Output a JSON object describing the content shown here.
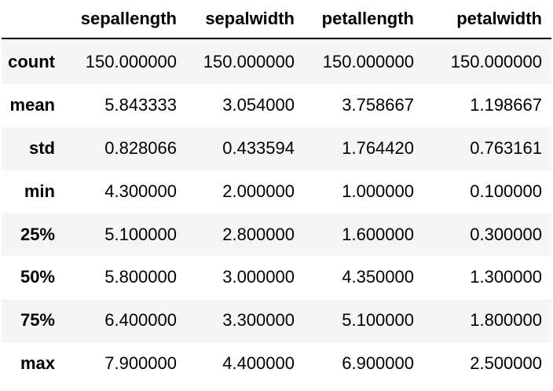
{
  "table": {
    "columns": [
      "",
      "sepallength",
      "sepalwidth",
      "petallength",
      "petalwidth"
    ],
    "rows": [
      {
        "index": "count",
        "values": [
          "150.000000",
          "150.000000",
          "150.000000",
          "150.000000"
        ]
      },
      {
        "index": "mean",
        "values": [
          "5.843333",
          "3.054000",
          "3.758667",
          "1.198667"
        ]
      },
      {
        "index": "std",
        "values": [
          "0.828066",
          "0.433594",
          "1.764420",
          "0.763161"
        ]
      },
      {
        "index": "min",
        "values": [
          "4.300000",
          "2.000000",
          "1.000000",
          "0.100000"
        ]
      },
      {
        "index": "25%",
        "values": [
          "5.100000",
          "2.800000",
          "1.600000",
          "0.300000"
        ]
      },
      {
        "index": "50%",
        "values": [
          "5.800000",
          "3.000000",
          "4.350000",
          "1.300000"
        ]
      },
      {
        "index": "75%",
        "values": [
          "6.400000",
          "3.300000",
          "5.100000",
          "1.800000"
        ]
      },
      {
        "index": "max",
        "values": [
          "7.900000",
          "4.400000",
          "6.900000",
          "2.500000"
        ]
      }
    ]
  }
}
